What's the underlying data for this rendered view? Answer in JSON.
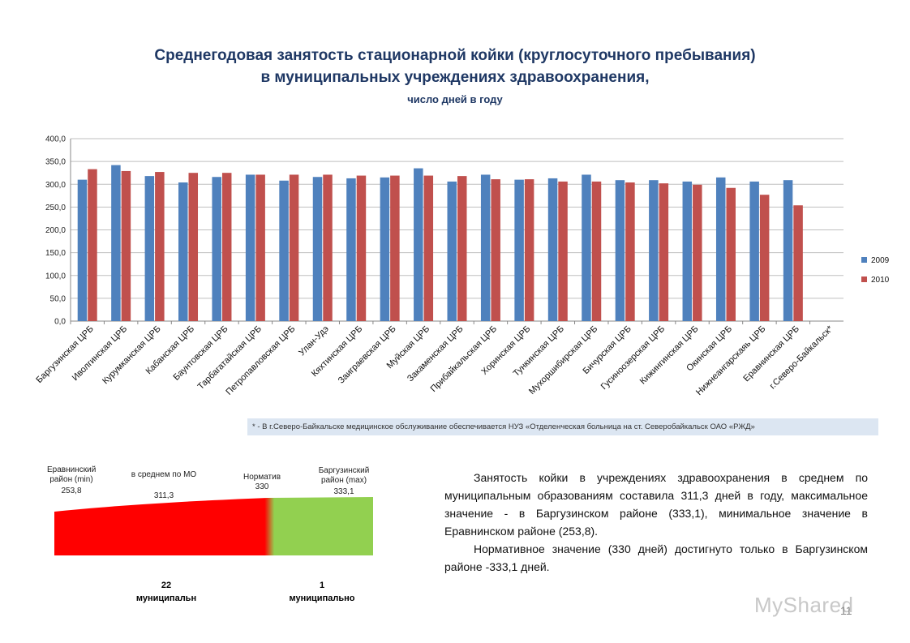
{
  "header": {
    "title_line1": "Среднегодовая занятость стационарной койки  (круглосуточного пребывания)",
    "title_line2": "в муниципальных учреждениях здравоохранения,",
    "subtitle": "число дней в году"
  },
  "chart_data": {
    "type": "bar",
    "categories": [
      "Баргузинская ЦРБ",
      "Иволгинская ЦРБ",
      "Курумканская ЦРБ",
      "Кабанская ЦРБ",
      "Баунтовская ЦРБ",
      "Тарбагатайская ЦРБ",
      "Петропавловская ЦРБ",
      "Улан-Удэ",
      "Кяхтинская ЦРБ",
      "Заиграевская ЦРБ",
      "Муйская ЦРБ",
      "Закаменская ЦРБ",
      "Прибайкальская ЦРБ",
      "Хоринская ЦРБ",
      "Тункинская ЦРБ",
      "Мухоршибирская ЦРБ",
      "Бичурская ЦРБ",
      "Гусиноозерская ЦРБ",
      "Кижингинская ЦРБ",
      "Окинская ЦРБ",
      "Нижнеангарскаяь ЦРБ",
      "Еравнинская ЦРБ",
      "г.Северо-Байкальск*"
    ],
    "series": [
      {
        "name": "2009",
        "color": "#4f81bd",
        "values": [
          310,
          342,
          318,
          304,
          316,
          321,
          308,
          316,
          313,
          315,
          335,
          306,
          321,
          310,
          313,
          321,
          309,
          309,
          306,
          315,
          306,
          309,
          null
        ]
      },
      {
        "name": "2010",
        "color": "#c0504d",
        "values": [
          333.1,
          329,
          327,
          325,
          325,
          321,
          321,
          321,
          319,
          319,
          319,
          318,
          311,
          311,
          306,
          306,
          304,
          302,
          299,
          292,
          277,
          253.8,
          null
        ]
      }
    ],
    "ylim": [
      0,
      400
    ],
    "yticks": [
      "0,0",
      "50,0",
      "100,0",
      "150,0",
      "200,0",
      "250,0",
      "300,0",
      "350,0",
      "400,0"
    ],
    "grid": true,
    "legend_position": "right"
  },
  "footnote": "* - В г.Северо-Байкальске медицинское обслуживание обеспечивается НУЗ «Отделенческая больница на ст. Северобайкальск ОАО «РЖД»",
  "gauge": {
    "min_label": "Еравнинский район (min)",
    "min_value": "253,8",
    "avg_label": "в среднем по МО",
    "avg_value": "311,3",
    "norm_label": "Норматив",
    "norm_value": "330",
    "max_label": "Баргузинский район (max)",
    "max_value": "333,1",
    "below_count": "22",
    "below_label": "муниципальн",
    "above_count": "1",
    "above_label": "муниципально",
    "red_color": "#ff0000",
    "green_color": "#92d050"
  },
  "text": {
    "para1": "Занятость койки в учреждениях здравоохранения в среднем по муниципальным образованиям составила 311,3 дней в году, максимальное значение - в Баргузинском районе (333,1), минимальное значение в Еравнинском районе (253,8).",
    "para2": "Нормативное значение (330 дней) достигнуто только в Баргузинском районе -333,1 дней."
  },
  "page_number": "11",
  "watermark": "MyShared"
}
